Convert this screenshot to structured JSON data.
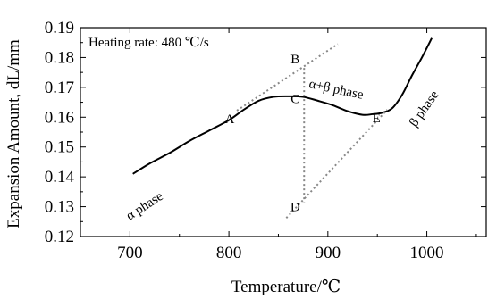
{
  "chart_data": {
    "type": "line",
    "xlabel": "Temperature/℃",
    "ylabel": "Expansion Amount, dL/mm",
    "xlim": [
      650,
      1060
    ],
    "ylim": [
      0.12,
      0.19
    ],
    "xticks": [
      "700",
      "800",
      "900",
      "1000"
    ],
    "yticks": [
      "0.12",
      "0.13",
      "0.14",
      "0.15",
      "0.16",
      "0.17",
      "0.18",
      "0.19"
    ],
    "grid": false,
    "annotation_box": "Heating rate: 480 ℃/s",
    "series": [
      {
        "style": "solid",
        "x": [
          703,
          720,
          740,
          760,
          780,
          800,
          815,
          830,
          845,
          860,
          875,
          890,
          905,
          920,
          935,
          945,
          955,
          965,
          975,
          985,
          995,
          1005
        ],
        "y": [
          0.141,
          0.1445,
          0.148,
          0.152,
          0.1555,
          0.159,
          0.1625,
          0.1655,
          0.1668,
          0.167,
          0.1668,
          0.1655,
          0.164,
          0.162,
          0.1608,
          0.161,
          0.1615,
          0.163,
          0.1675,
          0.174,
          0.18,
          0.1865
        ]
      },
      {
        "style": "dotted",
        "x": [
          808,
          910
        ],
        "y": [
          0.1622,
          0.1845
        ]
      },
      {
        "style": "dotted",
        "x": [
          858,
          960
        ],
        "y": [
          0.1262,
          0.1625
        ]
      },
      {
        "style": "dotted",
        "x": [
          876,
          876
        ],
        "y": [
          0.1765,
          0.1315
        ]
      }
    ],
    "points": [
      {
        "label": "A",
        "x": 808,
        "y": 0.1622
      },
      {
        "label": "B",
        "x": 876,
        "y": 0.1765
      },
      {
        "label": "C",
        "x": 876,
        "y": 0.1668
      },
      {
        "label": "D",
        "x": 876,
        "y": 0.1315
      },
      {
        "label": "E",
        "x": 960,
        "y": 0.1625
      }
    ],
    "phase_labels": {
      "alpha": "α phase",
      "alpha_beta": "α+β phase",
      "beta": "β phase"
    }
  }
}
